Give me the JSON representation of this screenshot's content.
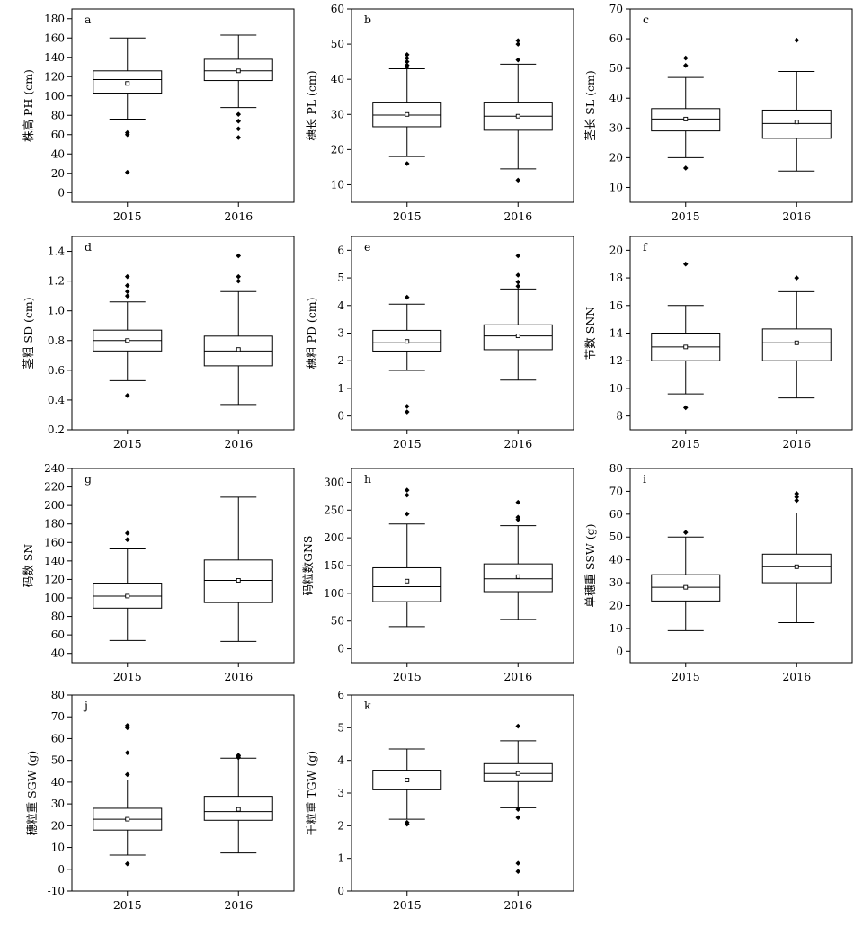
{
  "chart_data": [
    {
      "type": "box",
      "panel": "a",
      "ylabel": "株高 PH (cm)",
      "ylim": [
        -10,
        190
      ],
      "yticks": [
        0,
        20,
        40,
        60,
        80,
        100,
        120,
        140,
        160,
        180
      ],
      "categories": [
        "2015",
        "2016"
      ],
      "boxes": [
        {
          "category": "2015",
          "whisker_low": 76,
          "q1": 103,
          "median": 117,
          "q3": 126,
          "whisker_high": 160,
          "mean": 113,
          "outliers": [
            21,
            60,
            62
          ]
        },
        {
          "category": "2016",
          "whisker_low": 88,
          "q1": 116,
          "median": 126,
          "q3": 138,
          "whisker_high": 163,
          "mean": 126,
          "outliers": [
            57,
            66,
            74,
            81
          ]
        }
      ]
    },
    {
      "type": "box",
      "panel": "b",
      "ylabel": "穗长 PL (cm)",
      "ylim": [
        5,
        60
      ],
      "yticks": [
        10,
        20,
        30,
        40,
        50,
        60
      ],
      "categories": [
        "2015",
        "2016"
      ],
      "boxes": [
        {
          "category": "2015",
          "whisker_low": 18,
          "q1": 26.5,
          "median": 29.8,
          "q3": 33.5,
          "whisker_high": 43,
          "mean": 30,
          "outliers": [
            16,
            43.5,
            44,
            45,
            46,
            47
          ]
        },
        {
          "category": "2016",
          "whisker_low": 14.5,
          "q1": 25.5,
          "median": 29.5,
          "q3": 33.5,
          "whisker_high": 44.3,
          "mean": 29.5,
          "outliers": [
            11.3,
            45.5,
            50,
            51
          ]
        }
      ]
    },
    {
      "type": "box",
      "panel": "c",
      "ylabel": "茎长 SL (cm)",
      "ylim": [
        5,
        70
      ],
      "yticks": [
        10,
        20,
        30,
        40,
        50,
        60,
        70
      ],
      "categories": [
        "2015",
        "2016"
      ],
      "boxes": [
        {
          "category": "2015",
          "whisker_low": 20,
          "q1": 29,
          "median": 33,
          "q3": 36.5,
          "whisker_high": 47,
          "mean": 33,
          "outliers": [
            16.5,
            51,
            53.5
          ]
        },
        {
          "category": "2016",
          "whisker_low": 15.5,
          "q1": 26.5,
          "median": 31.5,
          "q3": 36,
          "whisker_high": 49,
          "mean": 32,
          "outliers": [
            59.5
          ]
        }
      ]
    },
    {
      "type": "box",
      "panel": "d",
      "ylabel": "茎粗 SD (cm)",
      "ylim": [
        0.2,
        1.5
      ],
      "yticks": [
        0.2,
        0.4,
        0.6,
        0.8,
        1.0,
        1.2,
        1.4
      ],
      "categories": [
        "2015",
        "2016"
      ],
      "boxes": [
        {
          "category": "2015",
          "whisker_low": 0.53,
          "q1": 0.73,
          "median": 0.8,
          "q3": 0.87,
          "whisker_high": 1.06,
          "mean": 0.8,
          "outliers": [
            0.43,
            1.1,
            1.13,
            1.17,
            1.23
          ]
        },
        {
          "category": "2016",
          "whisker_low": 0.37,
          "q1": 0.63,
          "median": 0.73,
          "q3": 0.83,
          "whisker_high": 1.13,
          "mean": 0.74,
          "outliers": [
            1.2,
            1.23,
            1.37
          ]
        }
      ]
    },
    {
      "type": "box",
      "panel": "e",
      "ylabel": "穗粗 PD (cm)",
      "ylim": [
        -0.5,
        6.5
      ],
      "yticks": [
        0,
        1,
        2,
        3,
        4,
        5,
        6
      ],
      "categories": [
        "2015",
        "2016"
      ],
      "boxes": [
        {
          "category": "2015",
          "whisker_low": 1.65,
          "q1": 2.35,
          "median": 2.65,
          "q3": 3.1,
          "whisker_high": 4.05,
          "mean": 2.7,
          "outliers": [
            0.15,
            0.35,
            4.3
          ]
        },
        {
          "category": "2016",
          "whisker_low": 1.3,
          "q1": 2.4,
          "median": 2.9,
          "q3": 3.3,
          "whisker_high": 4.6,
          "mean": 2.9,
          "outliers": [
            4.7,
            4.85,
            5.1,
            5.8
          ]
        }
      ]
    },
    {
      "type": "box",
      "panel": "f",
      "ylabel": "节数 SNN",
      "ylim": [
        7,
        21
      ],
      "yticks": [
        8,
        10,
        12,
        14,
        16,
        18,
        20
      ],
      "categories": [
        "2015",
        "2016"
      ],
      "boxes": [
        {
          "category": "2015",
          "whisker_low": 9.6,
          "q1": 12,
          "median": 13,
          "q3": 14,
          "whisker_high": 16,
          "mean": 13,
          "outliers": [
            8.6,
            19
          ]
        },
        {
          "category": "2016",
          "whisker_low": 9.3,
          "q1": 12,
          "median": 13.3,
          "q3": 14.3,
          "whisker_high": 17,
          "mean": 13.3,
          "outliers": [
            18
          ]
        }
      ]
    },
    {
      "type": "box",
      "panel": "g",
      "ylabel": "码数 SN",
      "ylim": [
        30,
        240
      ],
      "yticks": [
        40,
        60,
        80,
        100,
        120,
        140,
        160,
        180,
        200,
        220,
        240
      ],
      "categories": [
        "2015",
        "2016"
      ],
      "boxes": [
        {
          "category": "2015",
          "whisker_low": 54,
          "q1": 89,
          "median": 102,
          "q3": 116,
          "whisker_high": 153,
          "mean": 102,
          "outliers": [
            163,
            170
          ]
        },
        {
          "category": "2016",
          "whisker_low": 53,
          "q1": 95,
          "median": 119,
          "q3": 141,
          "whisker_high": 209,
          "mean": 119,
          "outliers": []
        }
      ]
    },
    {
      "type": "box",
      "panel": "h",
      "ylabel": "码粒数GNS",
      "ylim": [
        -25,
        325
      ],
      "yticks": [
        0,
        50,
        100,
        150,
        200,
        250,
        300
      ],
      "categories": [
        "2015",
        "2016"
      ],
      "boxes": [
        {
          "category": "2015",
          "whisker_low": 40,
          "q1": 85,
          "median": 112,
          "q3": 146,
          "whisker_high": 225,
          "mean": 122,
          "outliers": [
            243,
            277,
            286
          ]
        },
        {
          "category": "2016",
          "whisker_low": 53,
          "q1": 103,
          "median": 126,
          "q3": 153,
          "whisker_high": 222,
          "mean": 130,
          "outliers": [
            233,
            237,
            264
          ]
        }
      ]
    },
    {
      "type": "box",
      "panel": "i",
      "ylabel": "单穗重 SSW (g)",
      "ylim": [
        -5,
        80
      ],
      "yticks": [
        0,
        10,
        20,
        30,
        40,
        50,
        60,
        70,
        80
      ],
      "categories": [
        "2015",
        "2016"
      ],
      "boxes": [
        {
          "category": "2015",
          "whisker_low": 9,
          "q1": 22,
          "median": 28,
          "q3": 33.5,
          "whisker_high": 50,
          "mean": 28,
          "outliers": [
            52
          ]
        },
        {
          "category": "2016",
          "whisker_low": 12.5,
          "q1": 30,
          "median": 37,
          "q3": 42.5,
          "whisker_high": 60.5,
          "mean": 37,
          "outliers": [
            66,
            67.5,
            69
          ]
        }
      ]
    },
    {
      "type": "box",
      "panel": "j",
      "ylabel": "穗粒重 SGW (g)",
      "ylim": [
        -10,
        80
      ],
      "yticks": [
        -10,
        0,
        10,
        20,
        30,
        40,
        50,
        60,
        70,
        80
      ],
      "categories": [
        "2015",
        "2016"
      ],
      "boxes": [
        {
          "category": "2015",
          "whisker_low": 6.5,
          "q1": 18,
          "median": 23,
          "q3": 28,
          "whisker_high": 41,
          "mean": 23,
          "outliers": [
            2.5,
            43.5,
            53.5,
            65,
            66
          ]
        },
        {
          "category": "2016",
          "whisker_low": 7.5,
          "q1": 22.5,
          "median": 26.5,
          "q3": 33.5,
          "whisker_high": 51,
          "mean": 27.5,
          "outliers": [
            51.3,
            52,
            52.3
          ]
        }
      ]
    },
    {
      "type": "box",
      "panel": "k",
      "ylabel": "千粒重 TGW (g)",
      "ylim": [
        0,
        6
      ],
      "yticks": [
        0,
        1,
        2,
        3,
        4,
        5,
        6
      ],
      "categories": [
        "2015",
        "2016"
      ],
      "boxes": [
        {
          "category": "2015",
          "whisker_low": 2.2,
          "q1": 3.1,
          "median": 3.4,
          "q3": 3.7,
          "whisker_high": 4.35,
          "mean": 3.4,
          "outliers": [
            2.05,
            2.1
          ]
        },
        {
          "category": "2016",
          "whisker_low": 2.55,
          "q1": 3.35,
          "median": 3.6,
          "q3": 3.9,
          "whisker_high": 4.6,
          "mean": 3.6,
          "outliers": [
            0.6,
            0.85,
            2.25,
            2.5,
            5.05
          ]
        }
      ]
    }
  ]
}
